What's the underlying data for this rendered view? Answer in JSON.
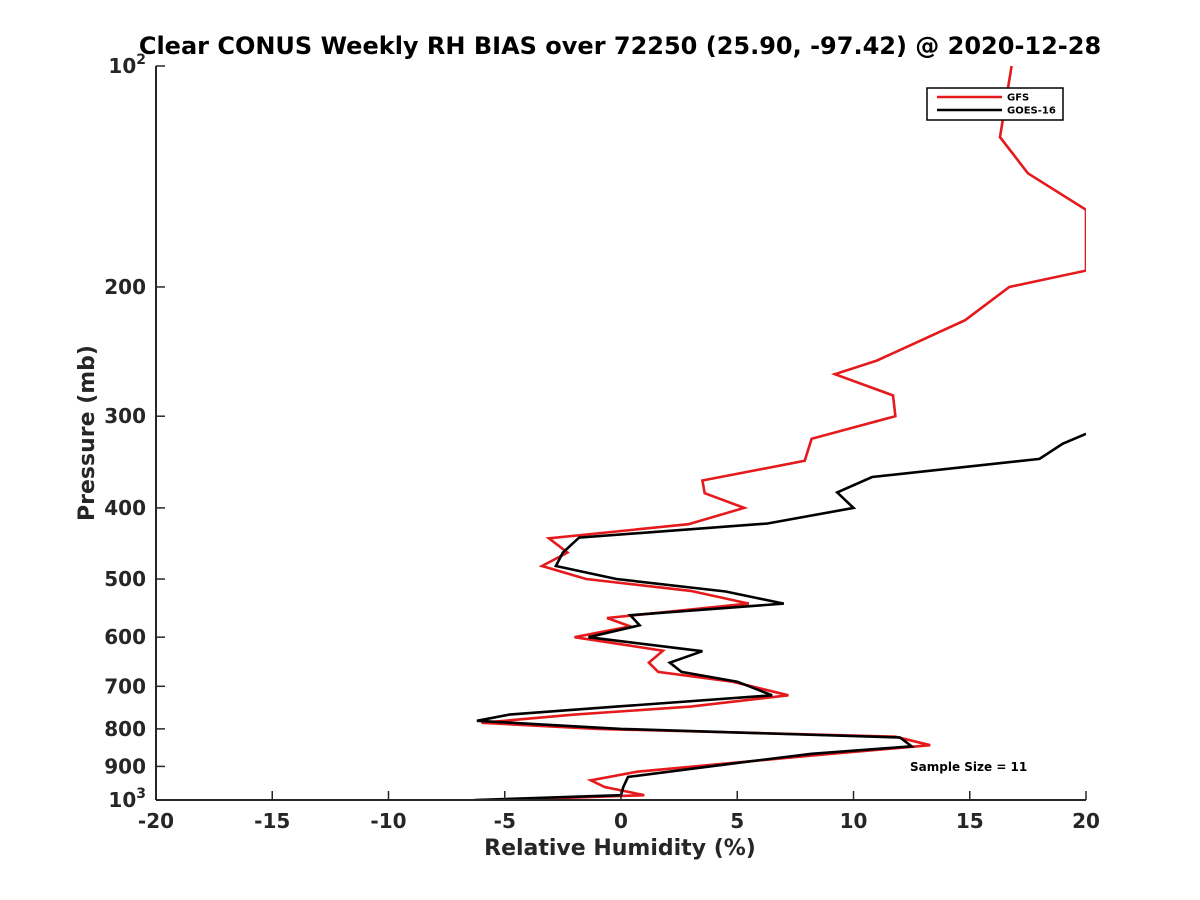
{
  "chart_data": {
    "type": "line",
    "title": "Clear CONUS Weekly RH BIAS over 72250 (25.90, -97.42) @ 2020-12-28",
    "xlabel": "Relative Humidity (%)",
    "ylabel": "Pressure (mb)",
    "xlim": [
      -20,
      20
    ],
    "ylim": [
      100,
      1000
    ],
    "y_scale": "log",
    "y_reversed": true,
    "grid": false,
    "legend_position": "top-right",
    "x_ticks": [
      "-20",
      "-15",
      "-10",
      "-5",
      "0",
      "5",
      "10",
      "15",
      "20"
    ],
    "y_ticks": [
      {
        "value": 100,
        "base": "10",
        "exp": "2"
      },
      {
        "value": 200,
        "label": "200"
      },
      {
        "value": 300,
        "label": "300"
      },
      {
        "value": 400,
        "label": "400"
      },
      {
        "value": 500,
        "label": "500"
      },
      {
        "value": 600,
        "label": "600"
      },
      {
        "value": 700,
        "label": "700"
      },
      {
        "value": 800,
        "label": "800"
      },
      {
        "value": 900,
        "label": "900"
      },
      {
        "value": 1000,
        "base": "10",
        "exp": "3"
      }
    ],
    "annotation": "Sample Size = 11",
    "series": [
      {
        "name": "GFS",
        "color": "#e41a1c",
        "points": [
          [
            16.8,
            100
          ],
          [
            16.3,
            125
          ],
          [
            17.5,
            140
          ],
          [
            20.0,
            157
          ],
          [
            20.0,
            190
          ],
          [
            16.7,
            200
          ],
          [
            14.8,
            222
          ],
          [
            11.0,
            252
          ],
          [
            9.2,
            263
          ],
          [
            11.7,
            281
          ],
          [
            11.8,
            300
          ],
          [
            8.2,
            322
          ],
          [
            7.9,
            345
          ],
          [
            3.5,
            367
          ],
          [
            3.6,
            382
          ],
          [
            5.3,
            400
          ],
          [
            2.9,
            421
          ],
          [
            -3.1,
            440
          ],
          [
            -2.3,
            460
          ],
          [
            -3.4,
            480
          ],
          [
            -1.5,
            500
          ],
          [
            3.0,
            519
          ],
          [
            5.5,
            540
          ],
          [
            -0.6,
            565
          ],
          [
            0.4,
            580
          ],
          [
            -2.0,
            600
          ],
          [
            1.8,
            626
          ],
          [
            1.2,
            650
          ],
          [
            1.6,
            669
          ],
          [
            4.8,
            690
          ],
          [
            7.2,
            720
          ],
          [
            3.0,
            746
          ],
          [
            -2.0,
            765
          ],
          [
            -6.0,
            785
          ],
          [
            -1.0,
            800
          ],
          [
            11.8,
            820
          ],
          [
            13.3,
            842
          ],
          [
            8.2,
            870
          ],
          [
            4.8,
            890
          ],
          [
            0.7,
            915
          ],
          [
            -1.3,
            940
          ],
          [
            -0.7,
            960
          ],
          [
            1.0,
            985
          ],
          [
            -5.0,
            1000
          ]
        ]
      },
      {
        "name": "GOES-16",
        "color": "#000000",
        "points": [
          [
            20.0,
            317
          ],
          [
            19.0,
            327
          ],
          [
            18.0,
            343
          ],
          [
            10.8,
            363
          ],
          [
            9.3,
            381
          ],
          [
            10.0,
            400
          ],
          [
            6.3,
            420
          ],
          [
            -1.8,
            439
          ],
          [
            -2.5,
            460
          ],
          [
            -2.8,
            480
          ],
          [
            -0.2,
            500
          ],
          [
            4.5,
            520
          ],
          [
            7.0,
            540
          ],
          [
            0.4,
            560
          ],
          [
            0.8,
            578
          ],
          [
            -1.4,
            600
          ],
          [
            3.5,
            627
          ],
          [
            2.1,
            650
          ],
          [
            2.6,
            669
          ],
          [
            5.0,
            690
          ],
          [
            6.5,
            720
          ],
          [
            -0.2,
            746
          ],
          [
            -4.8,
            765
          ],
          [
            -6.2,
            780
          ],
          [
            0.0,
            800
          ],
          [
            12.0,
            822
          ],
          [
            12.5,
            845
          ],
          [
            8.2,
            865
          ],
          [
            5.0,
            890
          ],
          [
            0.3,
            930
          ],
          [
            0.1,
            960
          ],
          [
            0.0,
            985
          ],
          [
            -6.3,
            1000
          ]
        ]
      }
    ]
  }
}
